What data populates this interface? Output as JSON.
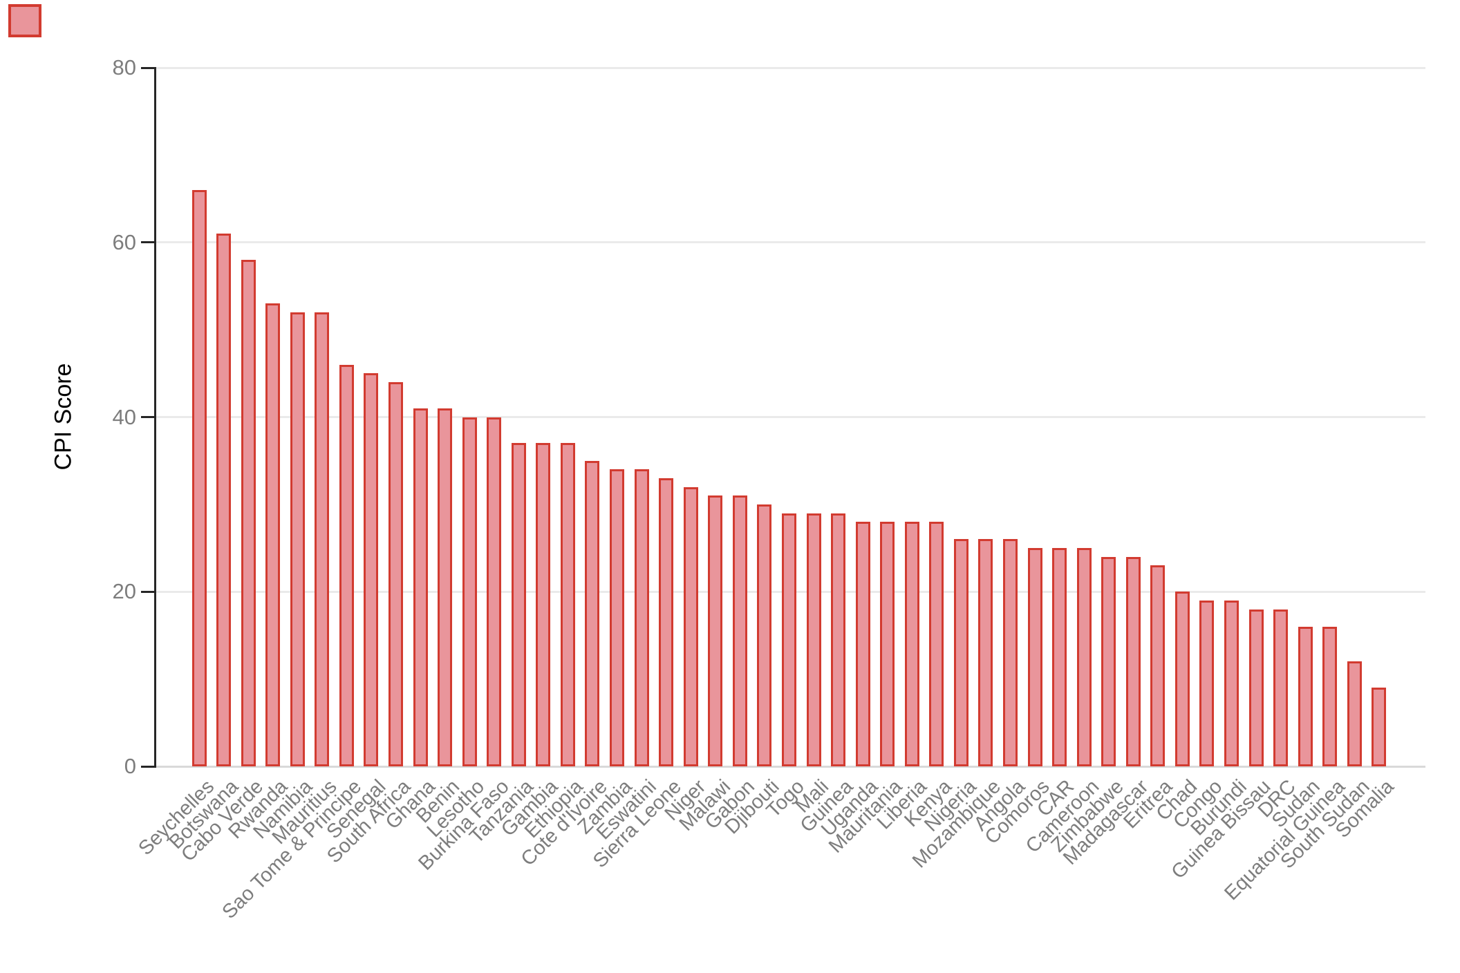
{
  "chart_data": {
    "type": "bar",
    "ylabel": "CPI Score",
    "xlabel": "",
    "categories": [
      "Seychelles",
      "Botswana",
      "Cabo Verde",
      "Rwanda",
      "Namibia",
      "Mauritius",
      "Sao Tome & Principe",
      "Senegal",
      "South Africa",
      "Ghana",
      "Benin",
      "Lesotho",
      "Burkina Faso",
      "Tanzania",
      "Gambia",
      "Ethiopia",
      "Cote d'Ivoire",
      "Zambia",
      "Eswatini",
      "Sierra Leone",
      "Niger",
      "Malawi",
      "Gabon",
      "Djibouti",
      "Togo",
      "Mali",
      "Guinea",
      "Uganda",
      "Mauritania",
      "Liberia",
      "Kenya",
      "Nigeria",
      "Mozambique",
      "Angola",
      "Comoros",
      "CAR",
      "Cameroon",
      "Zimbabwe",
      "Madagascar",
      "Eritrea",
      "Chad",
      "Congo",
      "Burundi",
      "Guinea Bissau",
      "DRC",
      "Sudan",
      "Equatorial Guinea",
      "South Sudan",
      "Somalia"
    ],
    "values": [
      66,
      61,
      58,
      53,
      52,
      52,
      46,
      45,
      44,
      41,
      41,
      40,
      40,
      37,
      37,
      37,
      35,
      34,
      34,
      33,
      32,
      31,
      31,
      30,
      29,
      29,
      29,
      28,
      28,
      28,
      28,
      26,
      26,
      26,
      25,
      25,
      25,
      24,
      24,
      23,
      20,
      19,
      19,
      18,
      18,
      16,
      16,
      12,
      9
    ],
    "yticks": [
      0,
      20,
      40,
      60,
      80
    ],
    "ylim": [
      0,
      80
    ],
    "grid": "horizontal-major-only",
    "legend": "none",
    "bar_fill": "#E9959B",
    "bar_stroke": "#D23B30",
    "axis_color": "#262626",
    "tick_label_color": "#7d7d7d"
  }
}
